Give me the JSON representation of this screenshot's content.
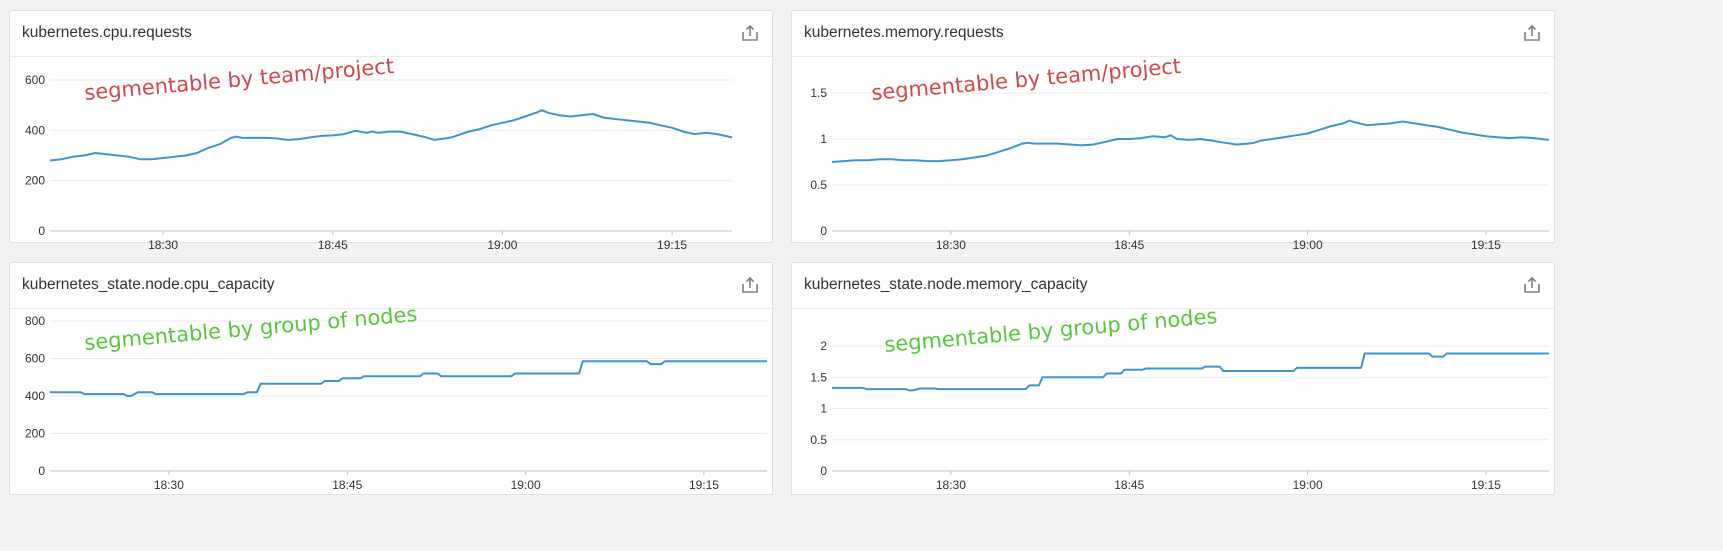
{
  "panels": [
    {
      "title": "kubernetes.cpu.requests",
      "share_icon": "share-icon",
      "annotation": "segmentable by team/project",
      "annotation_color": "#d04848"
    },
    {
      "title": "kubernetes.memory.requests",
      "share_icon": "share-icon",
      "annotation": "segmentable by team/project",
      "annotation_color": "#d04848"
    },
    {
      "title": "kubernetes_state.node.cpu_capacity",
      "share_icon": "share-icon",
      "annotation": "segmentable by group of nodes",
      "annotation_color": "#58c63a"
    },
    {
      "title": "kubernetes_state.node.memory_capacity",
      "share_icon": "share-icon",
      "annotation": "segmentable by group of nodes",
      "annotation_color": "#58c63a"
    }
  ],
  "line_color": "#3d95cd",
  "chart_data": [
    {
      "type": "line",
      "title": "kubernetes.cpu.requests",
      "xlabel": "",
      "ylabel": "",
      "x_ticks": [
        "18:30",
        "18:45",
        "19:00",
        "19:15"
      ],
      "x_tick_minutes": [
        30,
        45,
        60,
        75
      ],
      "xlim_minutes": [
        20,
        80.3
      ],
      "y_ticks": [
        "0",
        "200",
        "400",
        "600"
      ],
      "y_tick_values": [
        0,
        200,
        400,
        600
      ],
      "ylim": [
        0,
        600
      ],
      "grid": true,
      "series": [
        {
          "x_minutes": [
            20,
            21,
            22,
            23,
            24,
            25,
            26,
            27,
            28,
            29,
            30,
            31,
            32,
            33,
            34,
            35,
            36,
            36.5,
            37,
            38,
            39,
            40,
            41,
            42,
            43,
            44,
            45,
            46,
            47,
            48,
            48.5,
            49,
            50,
            51,
            52,
            53,
            54,
            55,
            55.5,
            56,
            57,
            58,
            59,
            60,
            61,
            62,
            63,
            63.5,
            64,
            65,
            66,
            67,
            68,
            69,
            70,
            71,
            72,
            73,
            74,
            75,
            76,
            77,
            78,
            79,
            80.3
          ],
          "values": [
            280,
            285,
            295,
            300,
            310,
            305,
            300,
            295,
            285,
            285,
            290,
            295,
            300,
            310,
            330,
            345,
            370,
            375,
            370,
            370,
            370,
            368,
            362,
            365,
            372,
            378,
            380,
            385,
            398,
            390,
            395,
            390,
            395,
            395,
            385,
            375,
            362,
            368,
            372,
            380,
            395,
            405,
            420,
            430,
            440,
            455,
            470,
            480,
            470,
            460,
            455,
            460,
            465,
            450,
            445,
            440,
            435,
            430,
            420,
            410,
            395,
            385,
            390,
            385,
            372
          ]
        }
      ]
    },
    {
      "type": "line",
      "title": "kubernetes.memory.requests",
      "xlabel": "",
      "ylabel": "",
      "x_ticks": [
        "18:30",
        "18:45",
        "19:00",
        "19:15"
      ],
      "x_tick_minutes": [
        30,
        45,
        60,
        75
      ],
      "xlim_minutes": [
        20,
        80.3
      ],
      "y_ticks": [
        "0",
        "0.5",
        "1",
        "1.5"
      ],
      "y_tick_values": [
        0,
        0.5,
        1,
        1.5
      ],
      "ylim": [
        0,
        1.5
      ],
      "grid": true,
      "series": [
        {
          "x_minutes": [
            20,
            21,
            22,
            23,
            24,
            25,
            26,
            27,
            28,
            29,
            30,
            31,
            32,
            33,
            34,
            35,
            36,
            36.5,
            37,
            38,
            39,
            40,
            41,
            42,
            43,
            44,
            45,
            46,
            47,
            48,
            48.5,
            49,
            50,
            51,
            52,
            53,
            54,
            55,
            55.5,
            56,
            57,
            58,
            59,
            60,
            61,
            62,
            63,
            63.5,
            64,
            65,
            66,
            67,
            68,
            69,
            70,
            71,
            72,
            73,
            74,
            75,
            76,
            77,
            78,
            79,
            80.3
          ],
          "values": [
            0.75,
            0.76,
            0.77,
            0.77,
            0.78,
            0.78,
            0.77,
            0.77,
            0.76,
            0.76,
            0.77,
            0.78,
            0.8,
            0.82,
            0.86,
            0.9,
            0.95,
            0.96,
            0.95,
            0.95,
            0.95,
            0.94,
            0.93,
            0.94,
            0.97,
            1.0,
            1.0,
            1.01,
            1.03,
            1.02,
            1.04,
            1.0,
            0.99,
            1.0,
            0.98,
            0.96,
            0.94,
            0.95,
            0.96,
            0.98,
            1.0,
            1.02,
            1.04,
            1.06,
            1.1,
            1.14,
            1.17,
            1.2,
            1.18,
            1.15,
            1.16,
            1.17,
            1.19,
            1.17,
            1.15,
            1.13,
            1.1,
            1.07,
            1.05,
            1.03,
            1.02,
            1.01,
            1.02,
            1.01,
            0.99
          ]
        }
      ]
    },
    {
      "type": "line",
      "title": "kubernetes_state.node.cpu_capacity",
      "xlabel": "",
      "ylabel": "",
      "x_ticks": [
        "18:30",
        "18:45",
        "19:00",
        "19:15"
      ],
      "x_tick_minutes": [
        30,
        45,
        60,
        75
      ],
      "xlim_minutes": [
        20,
        80.3
      ],
      "y_ticks": [
        "0",
        "200",
        "400",
        "600",
        "800"
      ],
      "y_tick_values": [
        0,
        200,
        400,
        600,
        800
      ],
      "ylim": [
        0,
        800
      ],
      "grid": true,
      "series": [
        {
          "x_minutes": [
            20,
            22.6,
            22.9,
            26.2,
            26.5,
            26.8,
            27.4,
            28.6,
            28.9,
            36.3,
            36.6,
            37.4,
            37.7,
            42.8,
            43.1,
            44.3,
            44.6,
            46.1,
            46.4,
            51.1,
            51.4,
            52.6,
            52.9,
            58.8,
            59.1,
            64.5,
            64.8,
            70.2,
            70.5,
            71.4,
            71.7,
            80.3
          ],
          "values": [
            420,
            420,
            410,
            410,
            400,
            400,
            420,
            420,
            410,
            410,
            420,
            420,
            465,
            465,
            480,
            480,
            495,
            495,
            505,
            505,
            520,
            520,
            505,
            505,
            520,
            520,
            585,
            585,
            570,
            570,
            585,
            585
          ]
        }
      ]
    },
    {
      "type": "line",
      "title": "kubernetes_state.node.memory_capacity",
      "xlabel": "",
      "ylabel": "",
      "x_ticks": [
        "18:30",
        "18:45",
        "19:00",
        "19:15"
      ],
      "x_tick_minutes": [
        30,
        45,
        60,
        75
      ],
      "xlim_minutes": [
        20,
        80.3
      ],
      "y_ticks": [
        "0",
        "0.5",
        "1",
        "1.5",
        "2"
      ],
      "y_tick_values": [
        0,
        0.5,
        1,
        1.5,
        2
      ],
      "ylim": [
        0,
        2.4
      ],
      "grid": true,
      "series": [
        {
          "x_minutes": [
            20,
            22.6,
            22.9,
            26.2,
            26.5,
            26.8,
            27.4,
            28.6,
            28.9,
            36.3,
            36.6,
            37.4,
            37.7,
            42.8,
            43.1,
            44.3,
            44.6,
            46.1,
            46.4,
            51.1,
            51.4,
            52.6,
            52.9,
            58.8,
            59.1,
            64.5,
            64.8,
            70.2,
            70.5,
            71.4,
            71.7,
            80.3
          ],
          "values": [
            1.33,
            1.33,
            1.31,
            1.31,
            1.29,
            1.29,
            1.32,
            1.32,
            1.31,
            1.31,
            1.37,
            1.37,
            1.5,
            1.5,
            1.56,
            1.56,
            1.62,
            1.62,
            1.64,
            1.64,
            1.67,
            1.67,
            1.6,
            1.6,
            1.65,
            1.65,
            1.88,
            1.88,
            1.83,
            1.83,
            1.88,
            1.88
          ]
        }
      ]
    }
  ]
}
